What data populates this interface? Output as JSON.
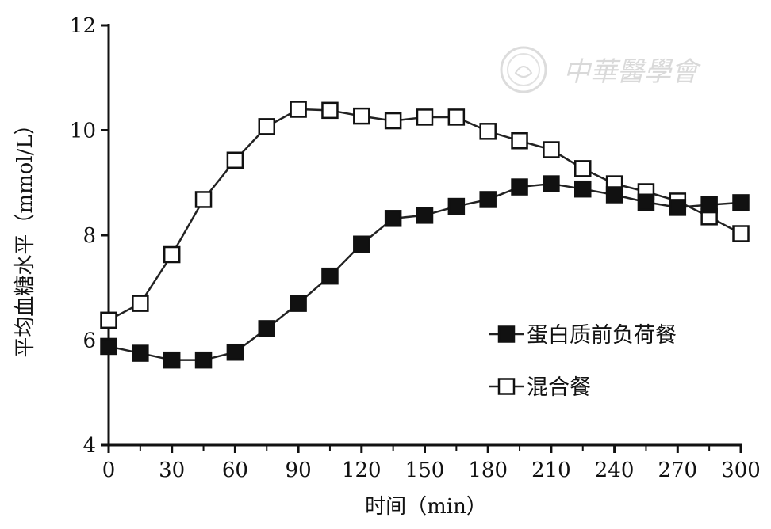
{
  "chart_data": {
    "type": "line",
    "xlabel": "时间（min）",
    "ylabel": "平均血糖水平（mmol/L）",
    "xlim": [
      0,
      300
    ],
    "ylim": [
      4,
      12
    ],
    "x_ticks": [
      0,
      30,
      60,
      90,
      120,
      150,
      180,
      210,
      240,
      270,
      300
    ],
    "y_ticks": [
      4,
      6,
      8,
      10,
      12
    ],
    "grid": false,
    "legend": "right",
    "x": [
      0,
      15,
      30,
      45,
      60,
      75,
      90,
      105,
      120,
      135,
      150,
      165,
      180,
      195,
      210,
      225,
      240,
      255,
      270,
      285,
      300
    ],
    "series": [
      {
        "name": "蛋白质前负荷餐",
        "marker": "filled-square",
        "values": [
          5.88,
          5.75,
          5.62,
          5.62,
          5.77,
          6.22,
          6.7,
          7.22,
          7.83,
          8.32,
          8.38,
          8.55,
          8.68,
          8.92,
          8.98,
          8.88,
          8.77,
          8.63,
          8.53,
          8.58,
          8.62
        ]
      },
      {
        "name": "混合餐",
        "marker": "open-square",
        "values": [
          6.38,
          6.7,
          7.63,
          8.68,
          9.43,
          10.07,
          10.4,
          10.38,
          10.27,
          10.18,
          10.25,
          10.25,
          9.98,
          9.8,
          9.63,
          9.27,
          8.98,
          8.83,
          8.65,
          8.35,
          8.03
        ]
      }
    ]
  },
  "watermark": {
    "text": "中華醫學會",
    "color": "#d9d9d9"
  }
}
